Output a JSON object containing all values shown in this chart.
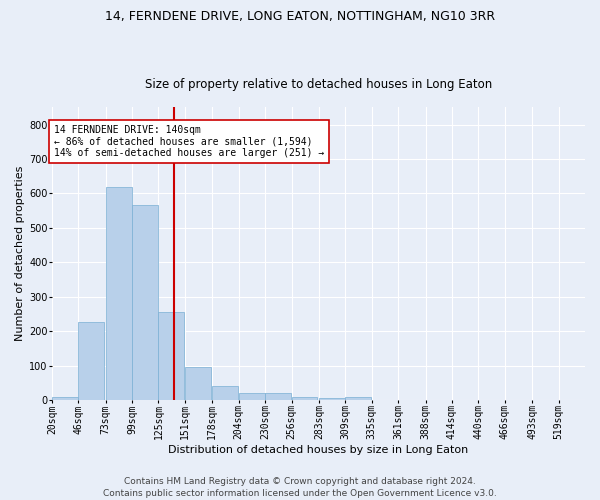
{
  "title": "14, FERNDENE DRIVE, LONG EATON, NOTTINGHAM, NG10 3RR",
  "subtitle": "Size of property relative to detached houses in Long Eaton",
  "xlabel": "Distribution of detached houses by size in Long Eaton",
  "ylabel": "Number of detached properties",
  "bar_color": "#b8d0ea",
  "bar_edge_color": "#7aafd4",
  "bg_color": "#e8eef8",
  "grid_color": "#ffffff",
  "fig_bg_color": "#e8eef8",
  "property_line_x": 140,
  "property_line_color": "#cc0000",
  "annotation_text": "14 FERNDENE DRIVE: 140sqm\n← 86% of detached houses are smaller (1,594)\n14% of semi-detached houses are larger (251) →",
  "annotation_box_color": "#ffffff",
  "annotation_box_edge": "#cc0000",
  "bin_edges": [
    20,
    46,
    73,
    99,
    125,
    151,
    178,
    204,
    230,
    256,
    283,
    309,
    335,
    361,
    388,
    414,
    440,
    466,
    493,
    519,
    545
  ],
  "bar_heights": [
    10,
    228,
    620,
    567,
    255,
    97,
    42,
    20,
    20,
    10,
    7,
    8,
    0,
    0,
    0,
    0,
    0,
    0,
    0,
    0
  ],
  "ylim": [
    0,
    850
  ],
  "yticks": [
    0,
    100,
    200,
    300,
    400,
    500,
    600,
    700,
    800
  ],
  "footer_text": "Contains HM Land Registry data © Crown copyright and database right 2024.\nContains public sector information licensed under the Open Government Licence v3.0.",
  "title_fontsize": 9,
  "subtitle_fontsize": 8.5,
  "xlabel_fontsize": 8,
  "ylabel_fontsize": 8,
  "tick_fontsize": 7,
  "footer_fontsize": 6.5
}
